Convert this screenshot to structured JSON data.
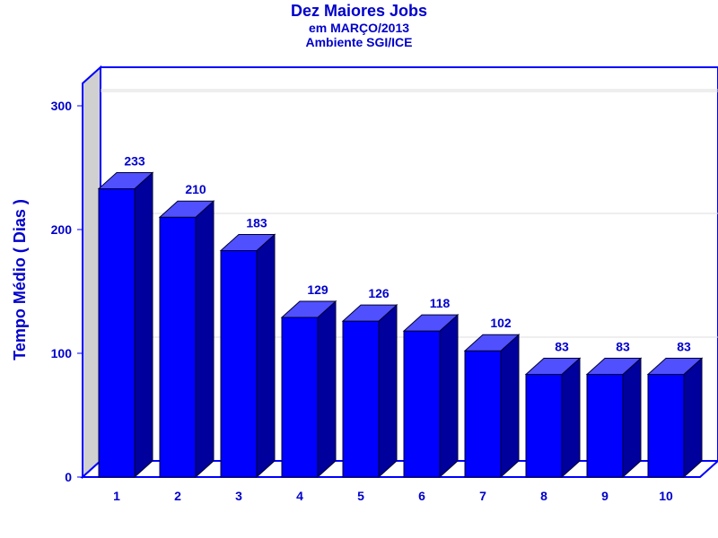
{
  "chart_data": {
    "type": "bar",
    "title": "Dez Maiores Jobs",
    "subtitle": "em MARÇO/2013",
    "subtitle2": "Ambiente SGI/ICE",
    "ylabel": "Tempo Médio ( Dias )",
    "xlabel": "",
    "categories": [
      "1",
      "2",
      "3",
      "4",
      "5",
      "6",
      "7",
      "8",
      "9",
      "10"
    ],
    "values": [
      233,
      210,
      183,
      129,
      126,
      118,
      102,
      83,
      83,
      83
    ],
    "yticks": [
      "0",
      "100",
      "200",
      "300"
    ],
    "ylim": [
      0,
      300
    ],
    "grid": true,
    "legend": "none",
    "colors": {
      "bar_front": "#0000ff",
      "bar_top": "#5050ff",
      "bar_side": "#00009c",
      "text": "#0000cc",
      "frame": "#0000ff",
      "left_wall": "#d0d0d0"
    }
  }
}
